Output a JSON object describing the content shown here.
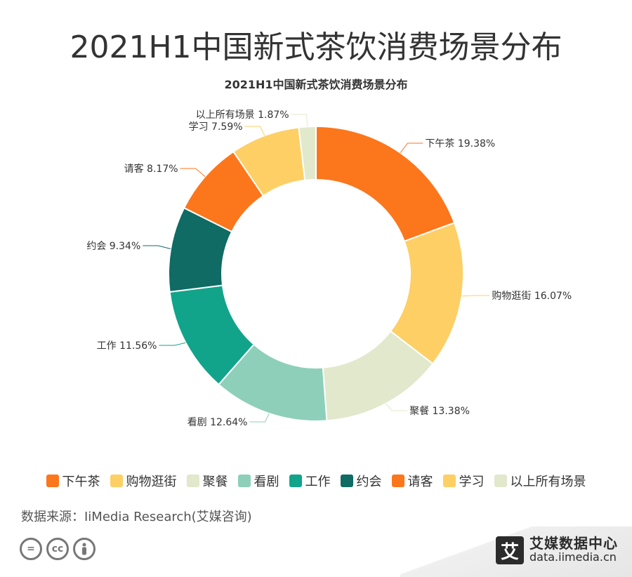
{
  "page": {
    "title": "2021H1中国新式茶饮消费场景分布",
    "source": "数据来源：IiMedia Research(艾媒咨询)",
    "brand_logo_char": "艾",
    "brand_name": "艾媒数据中心",
    "brand_url": "data.iimedia.cn",
    "license_icons": [
      "equals-icon",
      "cc-icon",
      "person-icon"
    ]
  },
  "chart_data": {
    "type": "pie",
    "title": "2021H1中国新式茶饮消费场景分布",
    "donut": true,
    "legend_position": "bottom",
    "unit": "%",
    "slices": [
      {
        "label": "下午茶",
        "value": 19.38,
        "color": "#FC761C"
      },
      {
        "label": "购物逛街",
        "value": 16.07,
        "color": "#FDCF65"
      },
      {
        "label": "聚餐",
        "value": 13.38,
        "color": "#E1E8CC"
      },
      {
        "label": "看剧",
        "value": 12.64,
        "color": "#8ECFBA"
      },
      {
        "label": "工作",
        "value": 11.56,
        "color": "#11A48A"
      },
      {
        "label": "约会",
        "value": 9.34,
        "color": "#0F6B64"
      },
      {
        "label": "请客",
        "value": 8.17,
        "color": "#FC761C"
      },
      {
        "label": "学习",
        "value": 7.59,
        "color": "#FDCF65"
      },
      {
        "label": "以上所有场景",
        "value": 1.87,
        "color": "#E1E8CC"
      }
    ]
  }
}
